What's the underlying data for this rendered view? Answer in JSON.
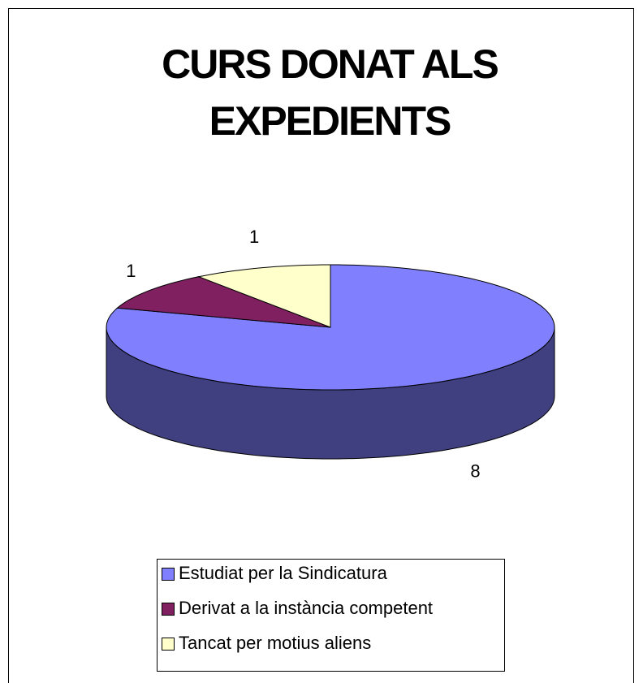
{
  "chart_data": {
    "type": "pie",
    "title": "CURS DONAT ALS EXPEDIENTS",
    "categories": [
      "Estudiat per la Sindicatura",
      "Derivat a la instància competent",
      "Tancat per motius aliens"
    ],
    "values": [
      8,
      1,
      1
    ],
    "colors": [
      "#8080ff",
      "#802060",
      "#ffffcc"
    ],
    "legend": "bottom"
  }
}
